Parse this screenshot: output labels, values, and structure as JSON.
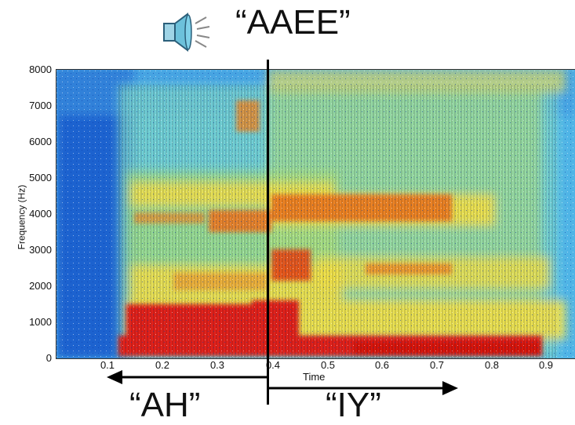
{
  "title": "“AAEE”",
  "icons": {
    "speaker": "speaker-icon"
  },
  "spectrogram": {
    "ylabel": "Frequency (Hz)",
    "xlabel": "Time",
    "yticks": [
      "8000",
      "7000",
      "6000",
      "5000",
      "4000",
      "3000",
      "2000",
      "1000",
      "0"
    ],
    "xticks": [
      "0.1",
      "0.2",
      "0.3",
      "0.4",
      "0.5",
      "0.6",
      "0.7",
      "0.8",
      "0.9"
    ],
    "xlim": [
      0,
      0.96
    ],
    "ylim": [
      0,
      8000
    ],
    "boundary_time": 0.39
  },
  "segments": {
    "left_label": "“AH”",
    "right_label": "“IY”"
  },
  "colors": {
    "low": "#1f5fd0",
    "mid": "#5fd0e0",
    "high": "#f6e64a",
    "peak": "#e21e0e"
  }
}
